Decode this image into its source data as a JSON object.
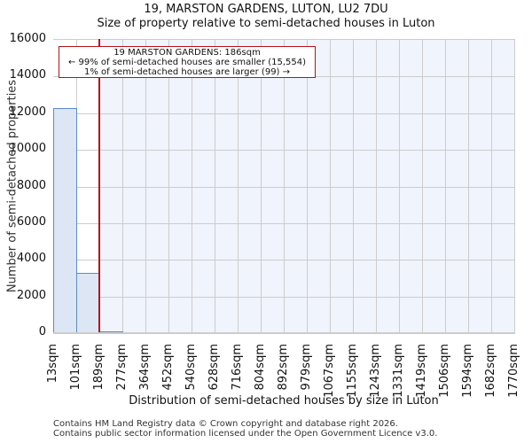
{
  "title": {
    "line1": "19, MARSTON GARDENS, LUTON, LU2 7DU",
    "line2": "Size of property relative to semi-detached houses in Luton"
  },
  "annotation": {
    "line1": "19 MARSTON GARDENS: 186sqm",
    "line2": "← 99% of semi-detached houses are smaller (15,554)",
    "line3": "1% of semi-detached houses are larger (99) →"
  },
  "footer": {
    "line1": "Contains HM Land Registry data © Crown copyright and database right 2026.",
    "line2": "Contains public sector information licensed under the Open Government Licence v3.0."
  },
  "colors": {
    "bar_fill": "#dce6f4",
    "bar_edge": "#5b8cc8",
    "marker": "#b5121b",
    "plot_bg": "#f0f4fd"
  },
  "chart_data": {
    "type": "bar",
    "title": "19, MARSTON GARDENS, LUTON, LU2 7DU — Size of property relative to semi-detached houses in Luton",
    "xlabel": "Distribution of semi-detached houses by size in Luton",
    "ylabel": "Number of semi-detached properties",
    "categories": [
      "13sqm",
      "101sqm",
      "189sqm",
      "277sqm",
      "364sqm",
      "452sqm",
      "540sqm",
      "628sqm",
      "716sqm",
      "804sqm",
      "892sqm",
      "979sqm",
      "1067sqm",
      "1155sqm",
      "1243sqm",
      "1331sqm",
      "1419sqm",
      "1506sqm",
      "1594sqm",
      "1682sqm",
      "1770sqm"
    ],
    "values": [
      12280,
      3290,
      99,
      0,
      0,
      0,
      0,
      0,
      0,
      0,
      0,
      0,
      0,
      0,
      0,
      0,
      0,
      0,
      0,
      0
    ],
    "yticks": [
      0,
      2000,
      4000,
      6000,
      8000,
      10000,
      12000,
      14000,
      16000
    ],
    "ylim": [
      0,
      16000
    ],
    "grid": true,
    "marker": {
      "value_sqm": 186,
      "label": "19 MARSTON GARDENS: 186sqm"
    },
    "legend": null
  }
}
